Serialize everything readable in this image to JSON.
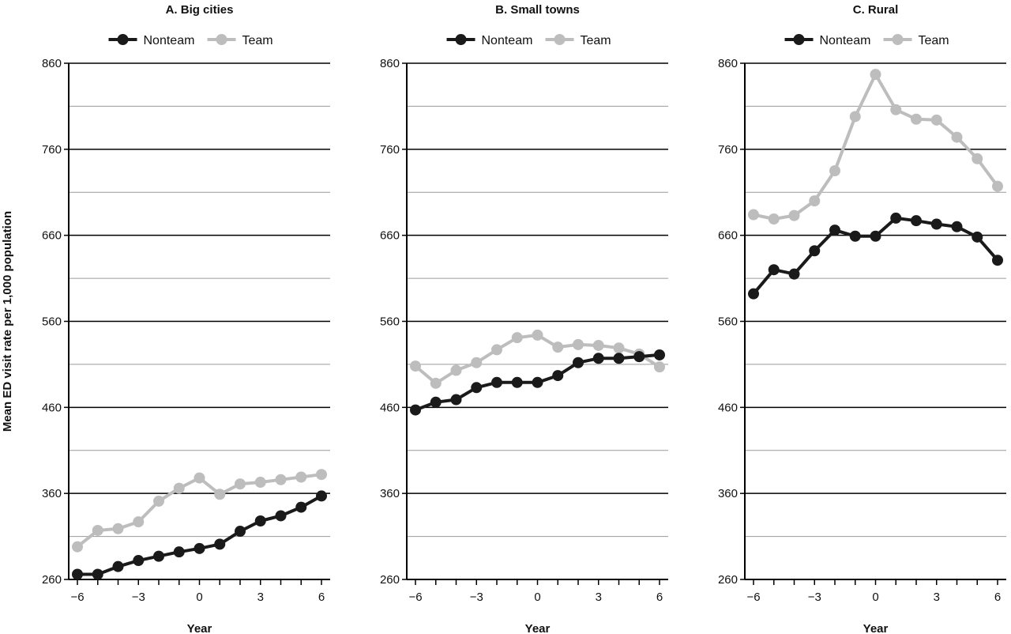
{
  "figure": {
    "ylabel": "Mean ED visit rate per 1,000 population",
    "xlabel": "Year"
  },
  "colors": {
    "nonteam": "#1a1a1a",
    "team": "#bdbdbd",
    "grid_major": "#000000",
    "grid_minor": "#9a9a9a"
  },
  "chart_data": [
    {
      "type": "line",
      "title": "A. Big cities",
      "xlabel": "Year",
      "ylabel": "Mean ED visit rate per 1,000 population",
      "xlim": [
        -6,
        6
      ],
      "ylim": [
        260,
        860
      ],
      "x_ticks": [
        -6,
        -3,
        0,
        3,
        6
      ],
      "y_ticks": [
        260,
        360,
        460,
        560,
        660,
        760,
        860
      ],
      "grid": true,
      "legend": "top",
      "x": [
        -6,
        -5,
        -4,
        -3,
        -2,
        -1,
        0,
        1,
        2,
        3,
        4,
        5,
        6
      ],
      "series": [
        {
          "name": "Nonteam",
          "values": [
            266,
            266,
            275,
            282,
            287,
            292,
            296,
            301,
            316,
            328,
            334,
            344,
            357
          ]
        },
        {
          "name": "Team",
          "values": [
            298,
            317,
            319,
            327,
            351,
            366,
            378,
            359,
            371,
            373,
            376,
            379,
            382
          ]
        }
      ]
    },
    {
      "type": "line",
      "title": "B. Small towns",
      "xlabel": "Year",
      "ylabel": "",
      "xlim": [
        -6,
        6
      ],
      "ylim": [
        260,
        860
      ],
      "x_ticks": [
        -6,
        -3,
        0,
        3,
        6
      ],
      "y_ticks": [
        260,
        360,
        460,
        560,
        660,
        760,
        860
      ],
      "grid": true,
      "legend": "top",
      "x": [
        -6,
        -5,
        -4,
        -3,
        -2,
        -1,
        0,
        1,
        2,
        3,
        4,
        5,
        6
      ],
      "series": [
        {
          "name": "Nonteam",
          "values": [
            457,
            466,
            469,
            483,
            489,
            489,
            489,
            497,
            512,
            517,
            517,
            519,
            521
          ]
        },
        {
          "name": "Team",
          "values": [
            508,
            488,
            503,
            512,
            527,
            541,
            544,
            530,
            533,
            532,
            529,
            522,
            507
          ]
        }
      ]
    },
    {
      "type": "line",
      "title": "C. Rural",
      "xlabel": "Year",
      "ylabel": "",
      "xlim": [
        -6,
        6
      ],
      "ylim": [
        260,
        860
      ],
      "x_ticks": [
        -6,
        -3,
        0,
        3,
        6
      ],
      "y_ticks": [
        260,
        360,
        460,
        560,
        660,
        760,
        860
      ],
      "grid": true,
      "legend": "top",
      "x": [
        -6,
        -5,
        -4,
        -3,
        -2,
        -1,
        0,
        1,
        2,
        3,
        4,
        5,
        6
      ],
      "series": [
        {
          "name": "Nonteam",
          "values": [
            592,
            620,
            615,
            642,
            666,
            659,
            659,
            680,
            677,
            673,
            670,
            658,
            631
          ]
        },
        {
          "name": "Team",
          "values": [
            684,
            679,
            683,
            700,
            735,
            798,
            847,
            806,
            795,
            794,
            774,
            749,
            717
          ]
        }
      ]
    }
  ]
}
